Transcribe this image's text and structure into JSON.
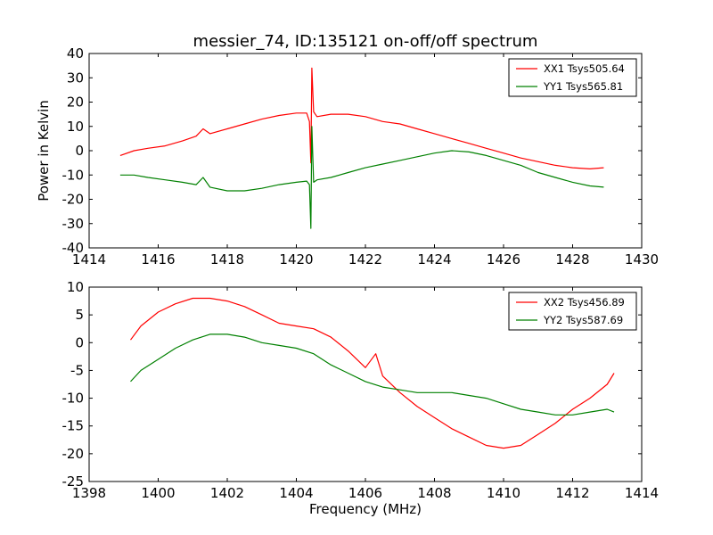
{
  "figure": {
    "title": "messier_74, ID:135121 on-off/off spectrum"
  },
  "colors": {
    "XX": "#ff0000",
    "YY": "#008000"
  },
  "chart_data": [
    {
      "type": "line",
      "title": "messier_74, ID:135121 on-off/off spectrum",
      "xlabel": "",
      "ylabel": "Power in Kelvin",
      "xlim": [
        1414,
        1430
      ],
      "ylim": [
        -40,
        40
      ],
      "xticks": [
        1414,
        1416,
        1418,
        1420,
        1422,
        1424,
        1426,
        1428,
        1430
      ],
      "yticks": [
        -40,
        -30,
        -20,
        -10,
        0,
        10,
        20,
        30,
        40
      ],
      "grid": false,
      "legend_position": "top-right",
      "series": [
        {
          "name": "XX1 Tsys505.64",
          "color": "#ff0000",
          "x": [
            1414.9,
            1415.3,
            1415.7,
            1416.2,
            1416.7,
            1417.1,
            1417.3,
            1417.5,
            1418.0,
            1418.5,
            1419.0,
            1419.5,
            1420.0,
            1420.3,
            1420.38,
            1420.42,
            1420.45,
            1420.5,
            1420.6,
            1421.0,
            1421.5,
            1422.0,
            1422.5,
            1423.0,
            1423.5,
            1424.0,
            1424.5,
            1425.0,
            1425.5,
            1426.0,
            1426.5,
            1427.0,
            1427.5,
            1428.0,
            1428.5,
            1428.9
          ],
          "y": [
            -2,
            0,
            1,
            2,
            4,
            6,
            9,
            7,
            9,
            11,
            13,
            14.5,
            15.5,
            15.5,
            12,
            -5,
            34,
            16,
            14,
            15,
            15,
            14,
            12,
            11,
            9,
            7,
            5,
            3,
            1,
            -1,
            -3,
            -4.5,
            -6,
            -7,
            -7.5,
            -7
          ]
        },
        {
          "name": "YY1 Tsys565.81",
          "color": "#008000",
          "x": [
            1414.9,
            1415.3,
            1415.7,
            1416.2,
            1416.7,
            1417.1,
            1417.3,
            1417.5,
            1418.0,
            1418.5,
            1419.0,
            1419.5,
            1420.0,
            1420.3,
            1420.38,
            1420.42,
            1420.45,
            1420.5,
            1420.6,
            1421.0,
            1421.5,
            1422.0,
            1422.5,
            1423.0,
            1423.5,
            1424.0,
            1424.5,
            1425.0,
            1425.5,
            1426.0,
            1426.5,
            1427.0,
            1427.5,
            1428.0,
            1428.5,
            1428.9
          ],
          "y": [
            -10,
            -10,
            -11,
            -12,
            -13,
            -14,
            -11,
            -15,
            -16.5,
            -16.5,
            -15.5,
            -14,
            -13,
            -12.5,
            -14,
            -32,
            10,
            -13,
            -12,
            -11,
            -9,
            -7,
            -5.5,
            -4,
            -2.5,
            -1,
            0,
            -0.5,
            -2,
            -4,
            -6,
            -9,
            -11,
            -13,
            -14.5,
            -15
          ]
        }
      ]
    },
    {
      "type": "line",
      "title": "",
      "xlabel": "Frequency (MHz)",
      "ylabel": "",
      "xlim": [
        1398,
        1414
      ],
      "ylim": [
        -25,
        10
      ],
      "xticks": [
        1398,
        1400,
        1402,
        1404,
        1406,
        1408,
        1410,
        1412,
        1414
      ],
      "yticks": [
        -25,
        -20,
        -15,
        -10,
        -5,
        0,
        5,
        10
      ],
      "grid": false,
      "legend_position": "top-right",
      "series": [
        {
          "name": "XX2 Tsys456.89",
          "color": "#ff0000",
          "x": [
            1399.2,
            1399.5,
            1400.0,
            1400.5,
            1401.0,
            1401.5,
            1402.0,
            1402.5,
            1403.0,
            1403.5,
            1404.0,
            1404.5,
            1405.0,
            1405.5,
            1406.0,
            1406.3,
            1406.5,
            1407.0,
            1407.5,
            1408.0,
            1408.5,
            1409.0,
            1409.5,
            1410.0,
            1410.5,
            1411.0,
            1411.5,
            1412.0,
            1412.5,
            1413.0,
            1413.2
          ],
          "y": [
            0.5,
            3,
            5.5,
            7,
            8,
            8,
            7.5,
            6.5,
            5,
            3.5,
            3,
            2.5,
            1,
            -1.5,
            -4.5,
            -2,
            -6,
            -9,
            -11.5,
            -13.5,
            -15.5,
            -17,
            -18.5,
            -19,
            -18.5,
            -16.5,
            -14.5,
            -12,
            -10,
            -7.5,
            -5.5
          ]
        },
        {
          "name": "YY2 Tsys587.69",
          "color": "#008000",
          "x": [
            1399.2,
            1399.5,
            1400.0,
            1400.5,
            1401.0,
            1401.5,
            1402.0,
            1402.5,
            1403.0,
            1403.5,
            1404.0,
            1404.5,
            1405.0,
            1405.5,
            1406.0,
            1406.5,
            1407.0,
            1407.5,
            1408.0,
            1408.5,
            1409.0,
            1409.5,
            1410.0,
            1410.5,
            1411.0,
            1411.5,
            1412.0,
            1412.5,
            1413.0,
            1413.2
          ],
          "y": [
            -7,
            -5,
            -3,
            -1,
            0.5,
            1.5,
            1.5,
            1,
            0,
            -0.5,
            -1,
            -2,
            -4,
            -5.5,
            -7,
            -8,
            -8.5,
            -9,
            -9,
            -9,
            -9.5,
            -10,
            -11,
            -12,
            -12.5,
            -13,
            -13,
            -12.5,
            -12,
            -12.5
          ]
        }
      ]
    }
  ]
}
